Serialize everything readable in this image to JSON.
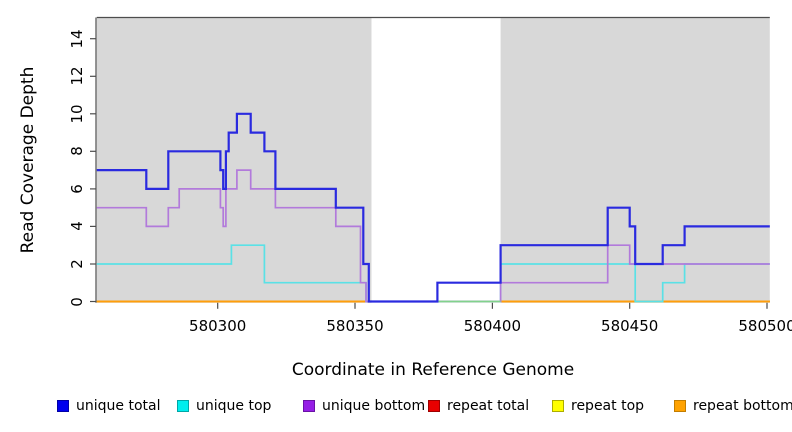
{
  "chart_data": {
    "type": "line",
    "subtype": "step-coverage",
    "title": "",
    "xlabel": "Coordinate in Reference Genome",
    "ylabel": "Read Coverage Depth",
    "xlim": [
      580256,
      580501
    ],
    "ylim": [
      0,
      15
    ],
    "grid": false,
    "legend_position": "bottom",
    "x_ticks": [
      "580300",
      "580350",
      "580400",
      "580450",
      "580500"
    ],
    "x_tick_values": [
      580300,
      580350,
      580400,
      580450,
      580500
    ],
    "y_ticks": [
      "0",
      "2",
      "4",
      "6",
      "8",
      "10",
      "12",
      "14"
    ],
    "y_tick_values": [
      0,
      2,
      4,
      6,
      8,
      10,
      12,
      14
    ],
    "shading": {
      "color": "#D8D8D8",
      "gray_regions": [
        [
          580256,
          580356
        ],
        [
          580403,
          580501
        ]
      ],
      "white_gap_regions": [
        [
          580356,
          580403
        ]
      ]
    },
    "series": [
      {
        "name": "unique total",
        "line_color": "#2A2ADF",
        "legend_fill": "#0000EE",
        "legend_border": "#0000A6",
        "line_width": 2.2,
        "breakpoints": [
          [
            580256,
            7
          ],
          [
            580274,
            6
          ],
          [
            580282,
            8
          ],
          [
            580301,
            7
          ],
          [
            580302,
            6
          ],
          [
            580303,
            8
          ],
          [
            580304,
            9
          ],
          [
            580307,
            10
          ],
          [
            580312,
            9
          ],
          [
            580317,
            8
          ],
          [
            580321,
            6
          ],
          [
            580343,
            5
          ],
          [
            580353,
            2
          ],
          [
            580355,
            0
          ],
          [
            580380,
            1
          ],
          [
            580403,
            3
          ],
          [
            580442,
            5
          ],
          [
            580450,
            4
          ],
          [
            580452,
            2
          ],
          [
            580462,
            3
          ],
          [
            580470,
            4
          ]
        ]
      },
      {
        "name": "unique top",
        "line_color": "#5AE1E6",
        "legend_fill": "#00EEEE",
        "legend_border": "#00A6A6",
        "line_width": 1.7,
        "breakpoints": [
          [
            580256,
            2
          ],
          [
            580305,
            3
          ],
          [
            580317,
            1
          ],
          [
            580354,
            0
          ],
          [
            580403,
            2
          ],
          [
            580452,
            0
          ],
          [
            580462,
            1
          ],
          [
            580470,
            2
          ]
        ]
      },
      {
        "name": "unique bottom",
        "line_color": "#B27ADB",
        "legend_fill": "#961EE6",
        "legend_border": "#6A12A6",
        "line_width": 1.7,
        "breakpoints": [
          [
            580256,
            5
          ],
          [
            580274,
            4
          ],
          [
            580282,
            5
          ],
          [
            580286,
            6
          ],
          [
            580301,
            5
          ],
          [
            580302,
            4
          ],
          [
            580303,
            6
          ],
          [
            580307,
            7
          ],
          [
            580312,
            6
          ],
          [
            580321,
            5
          ],
          [
            580343,
            4
          ],
          [
            580352,
            1
          ],
          [
            580354,
            0
          ],
          [
            580403,
            1
          ],
          [
            580442,
            3
          ],
          [
            580450,
            2
          ]
        ]
      },
      {
        "name": "repeat total",
        "line_color": "#DD0000",
        "legend_fill": "#E80000",
        "legend_border": "#9E0000",
        "line_width": 1.7,
        "breakpoints": [
          [
            580256,
            0
          ]
        ]
      },
      {
        "name": "repeat top",
        "line_color": "#F2F200",
        "legend_fill": "#FFFF00",
        "legend_border": "#ADAD00",
        "line_width": 1.7,
        "breakpoints": [
          [
            580256,
            0
          ]
        ]
      },
      {
        "name": "repeat bottom",
        "line_color": "#FF9E0A",
        "legend_fill": "#FFA200",
        "legend_border": "#C27D00",
        "line_width": 2.0,
        "breakpoints": [
          [
            580256,
            0
          ]
        ]
      }
    ],
    "overlap_blend_segment": {
      "note": "pale green where unique-top and repeat-top overlap at depth 0 on white gap",
      "x_from": 580380,
      "x_to": 580403,
      "value": 0,
      "color": "#82D28C"
    }
  }
}
